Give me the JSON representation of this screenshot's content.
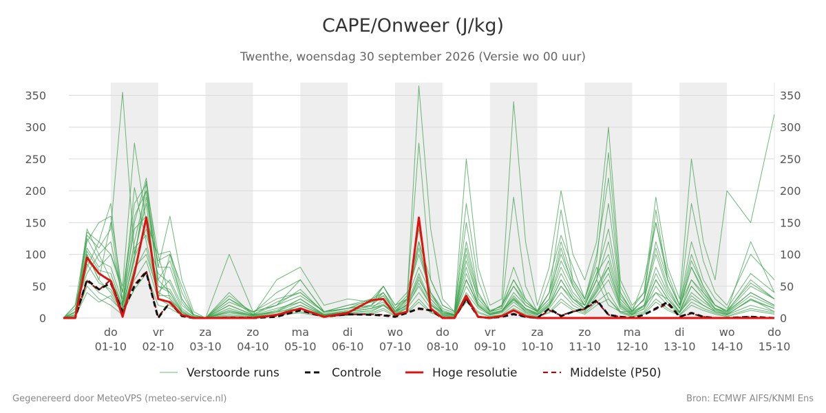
{
  "title": "CAPE/Onweer (J/kg)",
  "subtitle": "Twenthe, woensdag 30 september 2026 (Versie wo 00 uur)",
  "footer_left": "Gegenereerd door MeteoVPS (meteo-service.nl)",
  "footer_right": "Bron: ECMWF AIFS/KNMI Ens",
  "colors": {
    "ensemble": "#3aa04a",
    "control": "#111111",
    "hires": "#e0120f",
    "median": "#9b0f0f",
    "weekend_band": "#eeeeee",
    "grid": "#d9d9d9"
  },
  "chart_data": {
    "type": "line",
    "x_unit": "days since 30-09 00 uur",
    "xlim": [
      0,
      15
    ],
    "ylim": [
      0,
      370
    ],
    "yticks": [
      0,
      50,
      100,
      150,
      200,
      250,
      300,
      350
    ],
    "grid": true,
    "legend_position": "bottom",
    "x_tick_labels": [
      {
        "day": "do",
        "date": "01-10"
      },
      {
        "day": "vr",
        "date": "02-10"
      },
      {
        "day": "za",
        "date": "03-10"
      },
      {
        "day": "zo",
        "date": "04-10"
      },
      {
        "day": "ma",
        "date": "05-10"
      },
      {
        "day": "di",
        "date": "06-10"
      },
      {
        "day": "wo",
        "date": "07-10"
      },
      {
        "day": "do",
        "date": "08-10"
      },
      {
        "day": "vr",
        "date": "09-10"
      },
      {
        "day": "za",
        "date": "10-10"
      },
      {
        "day": "zo",
        "date": "11-10"
      },
      {
        "day": "ma",
        "date": "12-10"
      },
      {
        "day": "di",
        "date": "13-10"
      },
      {
        "day": "wo",
        "date": "14-10"
      },
      {
        "day": "do",
        "date": "15-10"
      }
    ],
    "shaded_day_bands": [
      [
        1,
        2
      ],
      [
        3,
        4
      ],
      [
        5,
        6
      ],
      [
        7,
        8
      ],
      [
        9,
        10
      ],
      [
        11,
        12
      ],
      [
        13,
        14
      ]
    ],
    "legend": [
      {
        "key": "ensemble",
        "label": "Verstoorde runs",
        "style": "thin"
      },
      {
        "key": "control",
        "label": "Controle",
        "style": "dashed-thick"
      },
      {
        "key": "hires",
        "label": "Hoge resolutie",
        "style": "thick"
      },
      {
        "key": "median",
        "label": "Middelste (P50)",
        "style": "dashed"
      }
    ],
    "x": [
      0,
      0.25,
      0.5,
      0.75,
      1.0,
      1.25,
      1.5,
      1.75,
      2.0,
      2.25,
      2.5,
      2.75,
      3.0,
      3.5,
      4.0,
      4.5,
      5.0,
      5.5,
      6.0,
      6.5,
      6.75,
      7.0,
      7.25,
      7.5,
      7.75,
      8.0,
      8.25,
      8.5,
      8.75,
      9.0,
      9.25,
      9.5,
      9.75,
      10.0,
      10.25,
      10.5,
      10.75,
      11.0,
      11.25,
      11.5,
      11.75,
      12.0,
      12.25,
      12.5,
      12.75,
      13.0,
      13.25,
      13.5,
      13.75,
      14.0,
      14.5,
      15.0
    ],
    "series": [
      {
        "name": "Hoge resolutie",
        "key": "hires",
        "values": [
          0,
          0,
          95,
          70,
          58,
          2,
          70,
          158,
          30,
          25,
          5,
          0,
          0,
          0,
          0,
          5,
          15,
          2,
          8,
          28,
          30,
          5,
          10,
          158,
          15,
          0,
          0,
          35,
          2,
          0,
          3,
          12,
          3,
          0,
          0,
          0,
          0,
          0,
          0,
          0,
          0,
          0,
          0,
          0,
          0,
          0,
          0,
          0,
          0,
          0,
          0,
          0
        ]
      },
      {
        "name": "Controle",
        "key": "control",
        "values": [
          0,
          0,
          60,
          45,
          55,
          10,
          50,
          72,
          0,
          25,
          3,
          0,
          0,
          0,
          0,
          2,
          12,
          2,
          6,
          5,
          4,
          2,
          8,
          15,
          12,
          0,
          0,
          30,
          2,
          0,
          2,
          6,
          2,
          0,
          15,
          3,
          10,
          15,
          28,
          5,
          2,
          0,
          5,
          15,
          25,
          2,
          8,
          2,
          0,
          0,
          2,
          0
        ]
      },
      {
        "name": "Middelste (P50)",
        "key": "median",
        "values": [
          0,
          0,
          58,
          44,
          60,
          8,
          52,
          74,
          2,
          24,
          3,
          0,
          0,
          1,
          1,
          3,
          12,
          2,
          6,
          6,
          5,
          3,
          8,
          14,
          12,
          1,
          0,
          30,
          2,
          0,
          2,
          7,
          2,
          0,
          12,
          4,
          10,
          14,
          26,
          5,
          2,
          1,
          5,
          14,
          22,
          2,
          7,
          2,
          0,
          0,
          2,
          0
        ]
      },
      {
        "name": "ens-01",
        "key": "ensemble",
        "values": [
          0,
          0,
          140,
          100,
          60,
          20,
          120,
          200,
          60,
          40,
          10,
          0,
          0,
          40,
          5,
          10,
          30,
          5,
          10,
          20,
          40,
          10,
          30,
          80,
          40,
          10,
          5,
          60,
          20,
          5,
          10,
          30,
          10,
          5,
          20,
          50,
          30,
          20,
          60,
          20,
          10,
          5,
          20,
          40,
          30,
          10,
          30,
          20,
          10,
          5,
          30,
          10
        ]
      },
      {
        "name": "ens-02",
        "key": "ensemble",
        "values": [
          0,
          10,
          120,
          150,
          160,
          40,
          180,
          210,
          100,
          30,
          5,
          0,
          0,
          100,
          10,
          20,
          60,
          10,
          20,
          30,
          50,
          20,
          40,
          120,
          60,
          20,
          10,
          180,
          60,
          10,
          20,
          50,
          20,
          10,
          40,
          120,
          60,
          30,
          80,
          30,
          10,
          10,
          60,
          150,
          60,
          20,
          60,
          40,
          20,
          10,
          120,
          40
        ]
      },
      {
        "name": "ens-03",
        "key": "ensemble",
        "values": [
          0,
          5,
          80,
          120,
          180,
          20,
          150,
          220,
          80,
          160,
          60,
          10,
          0,
          30,
          10,
          30,
          40,
          10,
          15,
          20,
          50,
          20,
          30,
          365,
          140,
          30,
          10,
          250,
          80,
          20,
          30,
          340,
          120,
          20,
          80,
          200,
          100,
          60,
          120,
          300,
          60,
          20,
          40,
          190,
          80,
          30,
          250,
          120,
          60,
          200,
          150,
          320
        ]
      },
      {
        "name": "ens-04",
        "key": "ensemble",
        "values": [
          0,
          20,
          100,
          60,
          40,
          10,
          100,
          180,
          30,
          100,
          50,
          5,
          0,
          20,
          5,
          60,
          80,
          20,
          30,
          25,
          40,
          15,
          30,
          275,
          60,
          20,
          10,
          150,
          40,
          10,
          20,
          60,
          30,
          10,
          30,
          80,
          40,
          20,
          60,
          120,
          30,
          10,
          30,
          120,
          60,
          20,
          180,
          90,
          40,
          20,
          100,
          60
        ]
      },
      {
        "name": "ens-05",
        "key": "ensemble",
        "values": [
          0,
          5,
          130,
          110,
          140,
          355,
          100,
          190,
          60,
          90,
          30,
          5,
          0,
          25,
          10,
          20,
          35,
          10,
          15,
          30,
          40,
          10,
          20,
          120,
          30,
          10,
          5,
          100,
          30,
          10,
          15,
          190,
          50,
          10,
          40,
          170,
          60,
          30,
          100,
          220,
          40,
          10,
          30,
          170,
          60,
          20,
          100,
          50,
          20,
          10,
          60,
          30
        ]
      },
      {
        "name": "ens-06",
        "key": "ensemble",
        "values": [
          0,
          10,
          110,
          80,
          100,
          50,
          275,
          150,
          100,
          105,
          40,
          5,
          0,
          10,
          5,
          15,
          25,
          5,
          10,
          15,
          20,
          10,
          20,
          60,
          30,
          10,
          5,
          80,
          20,
          5,
          10,
          40,
          20,
          10,
          30,
          110,
          50,
          20,
          70,
          100,
          30,
          10,
          20,
          80,
          40,
          15,
          80,
          40,
          15,
          10,
          40,
          20
        ]
      },
      {
        "name": "ens-07",
        "key": "ensemble",
        "values": [
          0,
          0,
          90,
          70,
          60,
          15,
          205,
          120,
          40,
          60,
          20,
          5,
          0,
          35,
          8,
          40,
          60,
          10,
          20,
          25,
          50,
          15,
          35,
          100,
          40,
          15,
          8,
          120,
          40,
          10,
          20,
          80,
          30,
          10,
          60,
          130,
          80,
          30,
          90,
          260,
          50,
          15,
          40,
          150,
          70,
          20,
          120,
          60,
          30,
          15,
          70,
          40
        ]
      },
      {
        "name": "ens-08",
        "key": "ensemble",
        "values": [
          0,
          5,
          100,
          60,
          150,
          20,
          90,
          215,
          50,
          40,
          10,
          0,
          0,
          10,
          3,
          5,
          20,
          5,
          10,
          15,
          30,
          10,
          20,
          50,
          20,
          10,
          3,
          60,
          20,
          5,
          10,
          30,
          15,
          5,
          20,
          60,
          30,
          15,
          50,
          80,
          20,
          5,
          15,
          60,
          30,
          10,
          50,
          30,
          10,
          5,
          30,
          15
        ]
      },
      {
        "name": "ens-09",
        "key": "ensemble",
        "values": [
          0,
          15,
          70,
          100,
          120,
          30,
          140,
          160,
          90,
          100,
          30,
          5,
          0,
          20,
          5,
          25,
          40,
          10,
          15,
          20,
          35,
          10,
          25,
          140,
          40,
          10,
          5,
          90,
          30,
          10,
          15,
          50,
          25,
          10,
          30,
          90,
          50,
          20,
          60,
          180,
          40,
          10,
          30,
          110,
          50,
          15,
          90,
          50,
          20,
          10,
          50,
          30
        ]
      },
      {
        "name": "ens-10",
        "key": "ensemble",
        "values": [
          0,
          5,
          60,
          40,
          30,
          10,
          80,
          100,
          40,
          30,
          10,
          0,
          0,
          5,
          2,
          10,
          15,
          5,
          8,
          10,
          20,
          5,
          15,
          40,
          15,
          5,
          2,
          40,
          15,
          5,
          8,
          25,
          10,
          5,
          15,
          40,
          20,
          10,
          35,
          60,
          15,
          5,
          10,
          40,
          20,
          8,
          35,
          20,
          10,
          5,
          20,
          10
        ]
      },
      {
        "name": "ens-11",
        "key": "ensemble",
        "values": [
          0,
          10,
          125,
          90,
          80,
          25,
          110,
          130,
          70,
          55,
          15,
          2,
          0,
          15,
          4,
          12,
          30,
          6,
          12,
          18,
          25,
          8,
          22,
          70,
          25,
          8,
          4,
          70,
          25,
          8,
          12,
          35,
          15,
          8,
          25,
          70,
          35,
          15,
          45,
          90,
          25,
          8,
          20,
          70,
          35,
          10,
          60,
          35,
          15,
          8,
          40,
          20
        ]
      },
      {
        "name": "ens-12",
        "key": "ensemble",
        "values": [
          0,
          0,
          50,
          30,
          20,
          5,
          60,
          90,
          30,
          20,
          5,
          0,
          0,
          3,
          1,
          5,
          10,
          3,
          5,
          8,
          15,
          4,
          10,
          30,
          10,
          4,
          1,
          30,
          10,
          3,
          5,
          20,
          8,
          3,
          10,
          30,
          15,
          8,
          25,
          40,
          10,
          3,
          8,
          30,
          15,
          5,
          25,
          15,
          8,
          3,
          15,
          8
        ]
      },
      {
        "name": "ens-13",
        "key": "ensemble",
        "values": [
          0,
          20,
          135,
          120,
          100,
          40,
          160,
          200,
          80,
          80,
          25,
          3,
          0,
          30,
          6,
          20,
          45,
          8,
          15,
          25,
          35,
          12,
          28,
          110,
          35,
          12,
          6,
          110,
          35,
          12,
          18,
          60,
          25,
          12,
          40,
          100,
          55,
          25,
          70,
          140,
          35,
          12,
          28,
          100,
          45,
          15,
          80,
          45,
          20,
          12,
          55,
          30
        ]
      },
      {
        "name": "ens-14",
        "key": "ensemble",
        "values": [
          0,
          8,
          85,
          55,
          45,
          12,
          75,
          110,
          35,
          35,
          8,
          1,
          0,
          8,
          3,
          8,
          20,
          4,
          8,
          12,
          20,
          6,
          16,
          55,
          20,
          6,
          3,
          50,
          18,
          6,
          10,
          28,
          12,
          6,
          18,
          50,
          25,
          12,
          40,
          70,
          18,
          6,
          14,
          50,
          25,
          8,
          40,
          25,
          12,
          6,
          28,
          15
        ]
      },
      {
        "name": "ens-15",
        "key": "ensemble",
        "values": [
          0,
          3,
          105,
          75,
          70,
          18,
          95,
          140,
          50,
          45,
          12,
          2,
          0,
          12,
          4,
          10,
          25,
          5,
          10,
          15,
          22,
          7,
          18,
          65,
          22,
          7,
          4,
          60,
          22,
          7,
          11,
          32,
          14,
          7,
          22,
          60,
          30,
          14,
          42,
          80,
          22,
          7,
          18,
          60,
          30,
          9,
          50,
          30,
          14,
          7,
          35,
          18
        ]
      },
      {
        "name": "ens-16",
        "key": "ensemble",
        "values": [
          0,
          2,
          40,
          25,
          35,
          8,
          45,
          70,
          20,
          15,
          4,
          0,
          0,
          2,
          1,
          4,
          8,
          2,
          4,
          6,
          12,
          3,
          8,
          25,
          8,
          3,
          1,
          25,
          8,
          2,
          4,
          15,
          6,
          2,
          8,
          25,
          12,
          6,
          20,
          30,
          8,
          2,
          6,
          25,
          12,
          4,
          20,
          12,
          6,
          2,
          12,
          6
        ]
      }
    ]
  }
}
